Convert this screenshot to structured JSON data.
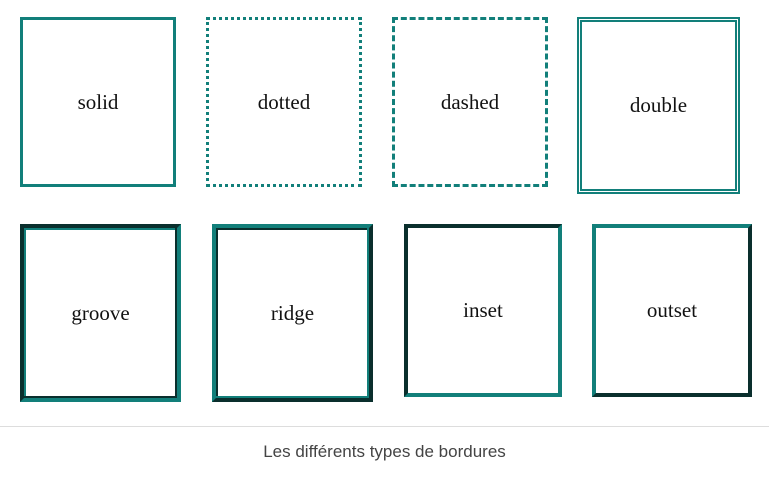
{
  "boxes": [
    {
      "label": "solid",
      "style": "solid"
    },
    {
      "label": "dotted",
      "style": "dotted"
    },
    {
      "label": "dashed",
      "style": "dashed"
    },
    {
      "label": "double",
      "style": "double"
    },
    {
      "label": "groove",
      "style": "groove"
    },
    {
      "label": "ridge",
      "style": "ridge"
    },
    {
      "label": "inset",
      "style": "inset"
    },
    {
      "label": "outset",
      "style": "outset"
    }
  ],
  "caption": "Les différents types de bordures",
  "colors": {
    "border": "#127f7a",
    "border_dark": "#0a2f2d",
    "text": "#111111",
    "caption": "#444444"
  }
}
